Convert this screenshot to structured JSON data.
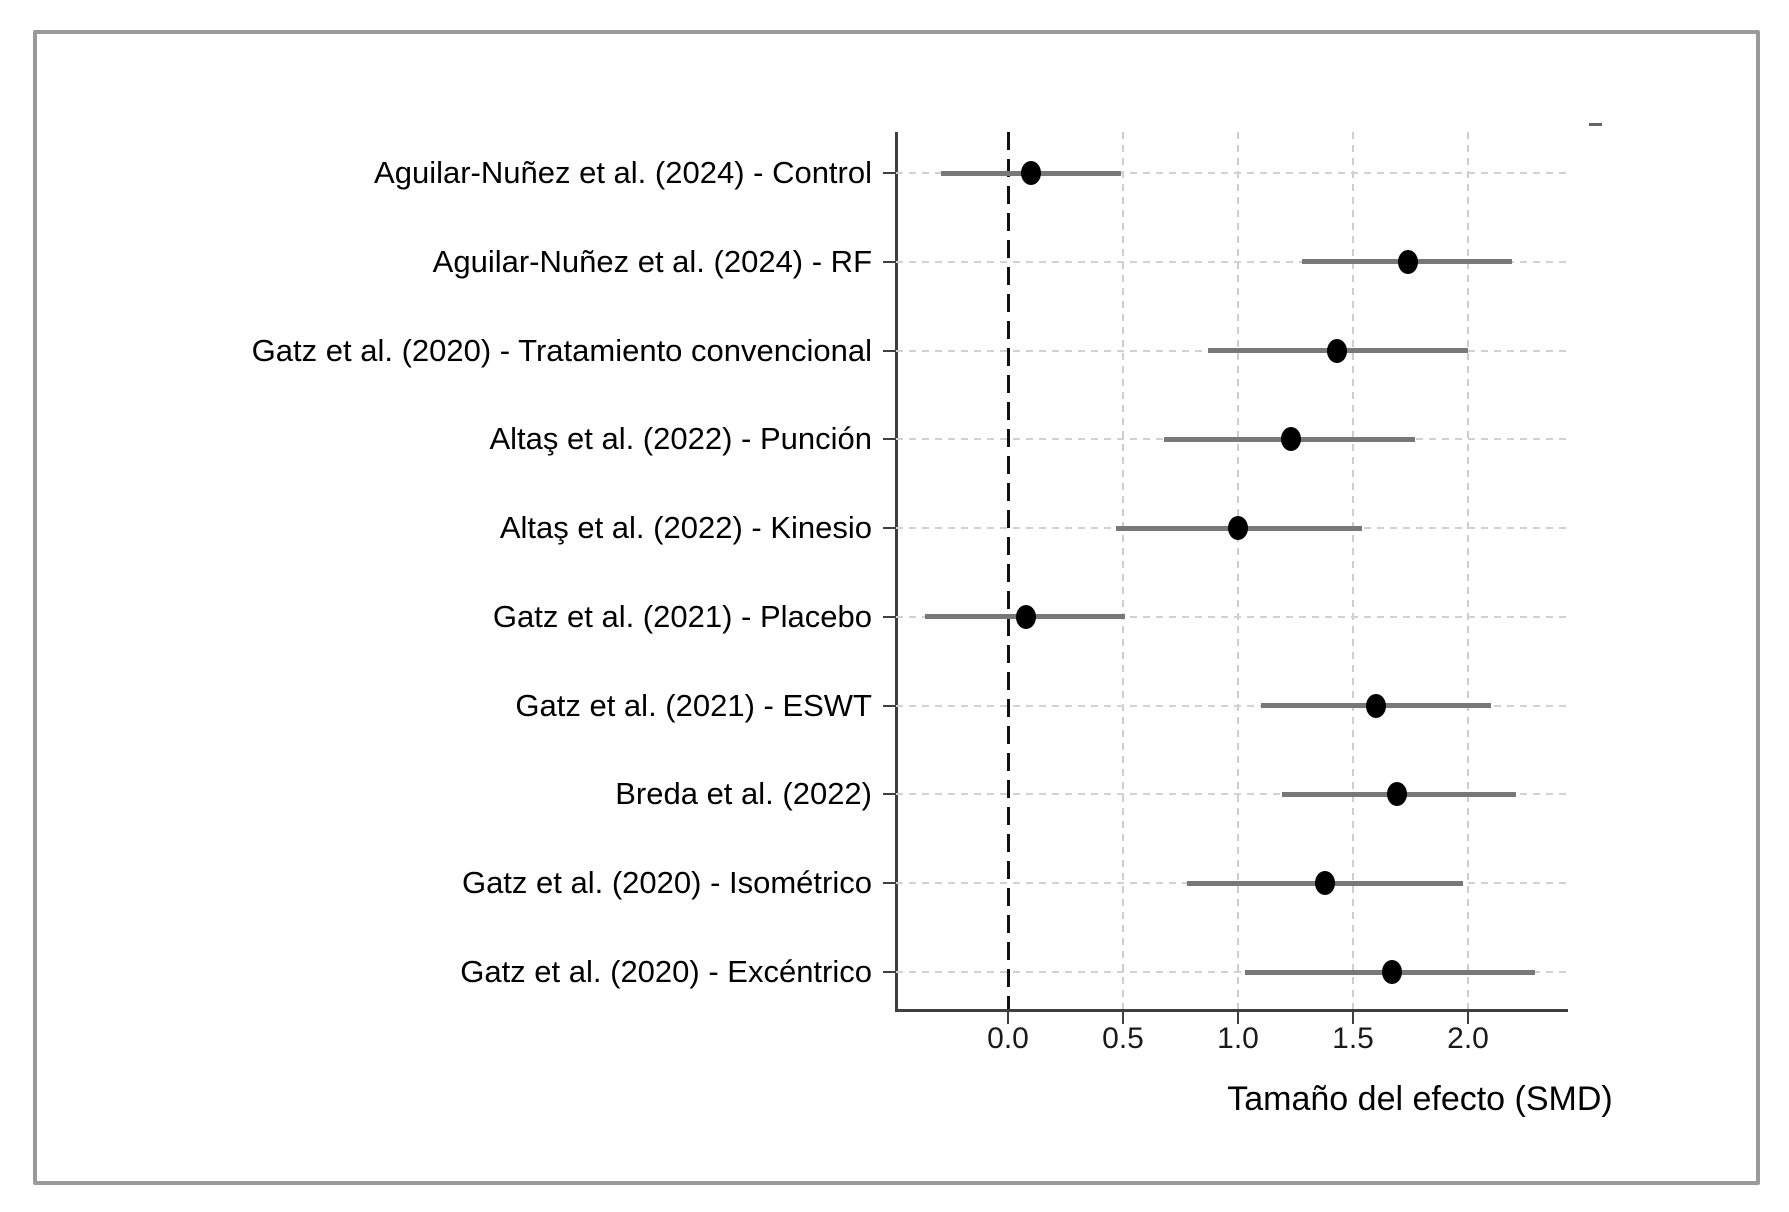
{
  "figure": {
    "background_color": "#ffffff",
    "border_color": "#9a9a9a"
  },
  "chart_data": {
    "type": "scatter",
    "subtype": "forest-plot",
    "title": "",
    "xlabel": "Tamaño del efecto (SMD)",
    "ylabel": "",
    "xlim": [
      -0.49,
      2.43
    ],
    "x_ticks": [
      0.0,
      0.5,
      1.0,
      1.5,
      2.0
    ],
    "x_tick_labels": [
      "0.0",
      "0.5",
      "1.0",
      "1.5",
      "2.0"
    ],
    "reference_line_x": 0,
    "grid": true,
    "legend": "none",
    "studies": [
      {
        "label": "Aguilar-Nuñez et al. (2024) - Control",
        "effect": 0.1,
        "ci_low": -0.29,
        "ci_high": 0.49
      },
      {
        "label": "Aguilar-Nuñez et al. (2024) - RF",
        "effect": 1.74,
        "ci_low": 1.28,
        "ci_high": 2.19
      },
      {
        "label": "Gatz et al. (2020) - Tratamiento convencional",
        "effect": 1.43,
        "ci_low": 0.87,
        "ci_high": 2.0
      },
      {
        "label": "Altaş et al. (2022) - Punción",
        "effect": 1.23,
        "ci_low": 0.68,
        "ci_high": 1.77
      },
      {
        "label": "Altaş et al. (2022) - Kinesio",
        "effect": 1.0,
        "ci_low": 0.47,
        "ci_high": 1.54
      },
      {
        "label": "Gatz et al. (2021) - Placebo",
        "effect": 0.08,
        "ci_low": -0.36,
        "ci_high": 0.51
      },
      {
        "label": "Gatz et al. (2021) - ESWT",
        "effect": 1.6,
        "ci_low": 1.1,
        "ci_high": 2.1
      },
      {
        "label": "Breda et al. (2022)",
        "effect": 1.69,
        "ci_low": 1.19,
        "ci_high": 2.21
      },
      {
        "label": "Gatz et al. (2020) - Isométrico",
        "effect": 1.38,
        "ci_low": 0.78,
        "ci_high": 1.98
      },
      {
        "label": "Gatz et al. (2020) - Excéntrico",
        "effect": 1.67,
        "ci_low": 1.03,
        "ci_high": 2.29
      }
    ],
    "style": {
      "ci_color": "#787878",
      "marker_color": "#000000",
      "grid_color": "#d2d2d2",
      "axis_color": "#3f3f3f",
      "reference_line_color": "#111111"
    }
  }
}
